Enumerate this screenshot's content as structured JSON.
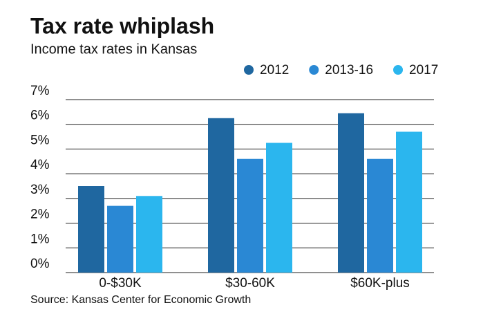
{
  "chart_data": {
    "type": "bar",
    "title": "Tax rate whiplash",
    "subtitle": "Income tax rates in Kansas",
    "source": "Source: Kansas Center for Economic Growth",
    "categories": [
      "0-$30K",
      "$30-60K",
      "$60K-plus"
    ],
    "series": [
      {
        "name": "2012",
        "color": "#1f67a0",
        "values": [
          3.5,
          6.25,
          6.45
        ]
      },
      {
        "name": "2013-16",
        "color": "#2a88d4",
        "values": [
          2.7,
          4.6,
          4.6
        ]
      },
      {
        "name": "2017",
        "color": "#2bb6ee",
        "values": [
          3.1,
          5.25,
          5.7
        ]
      }
    ],
    "ylim": [
      0,
      7
    ],
    "yticks": [
      {
        "value": 0,
        "label": "0%"
      },
      {
        "value": 1,
        "label": "1%"
      },
      {
        "value": 2,
        "label": "2%"
      },
      {
        "value": 3,
        "label": "3%"
      },
      {
        "value": 4,
        "label": "4%"
      },
      {
        "value": 5,
        "label": "5%"
      },
      {
        "value": 6,
        "label": "6%"
      },
      {
        "value": 7,
        "label": "7%"
      }
    ],
    "grid": true
  }
}
